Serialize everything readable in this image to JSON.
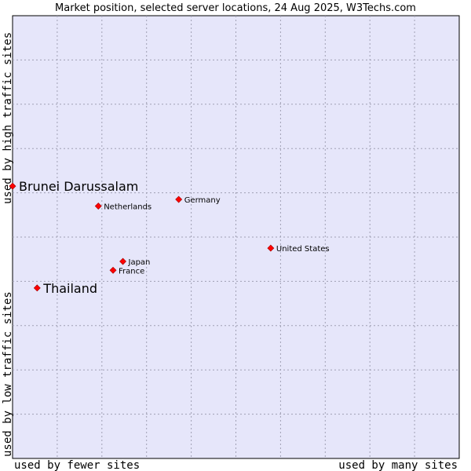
{
  "chart_data": {
    "type": "scatter",
    "title": "Market position, selected server locations, 24 Aug 2025, W3Techs.com",
    "x_axis": {
      "left_label": "used by fewer sites",
      "right_label": "used by many sites",
      "range": [
        0,
        10
      ],
      "gridlines": 10
    },
    "y_axis": {
      "top_label": "used by high traffic sites",
      "bottom_label": "used by low traffic sites",
      "range": [
        0,
        10
      ],
      "gridlines": 10
    },
    "grid": true,
    "background_color": "#e6e6fa",
    "grid_color": "#a0a0b4",
    "point_color": "#ff0000",
    "points": [
      {
        "name": "Brunei Darussalam",
        "x": 0.0,
        "y": 6.15,
        "highlight": true
      },
      {
        "name": "Thailand",
        "x": 0.55,
        "y": 3.85,
        "highlight": true
      },
      {
        "name": "Netherlands",
        "x": 1.92,
        "y": 5.7,
        "highlight": false
      },
      {
        "name": "Germany",
        "x": 3.72,
        "y": 5.85,
        "highlight": false
      },
      {
        "name": "Japan",
        "x": 2.47,
        "y": 4.45,
        "highlight": false
      },
      {
        "name": "France",
        "x": 2.25,
        "y": 4.25,
        "highlight": false
      },
      {
        "name": "United States",
        "x": 5.78,
        "y": 4.75,
        "highlight": false
      }
    ]
  }
}
